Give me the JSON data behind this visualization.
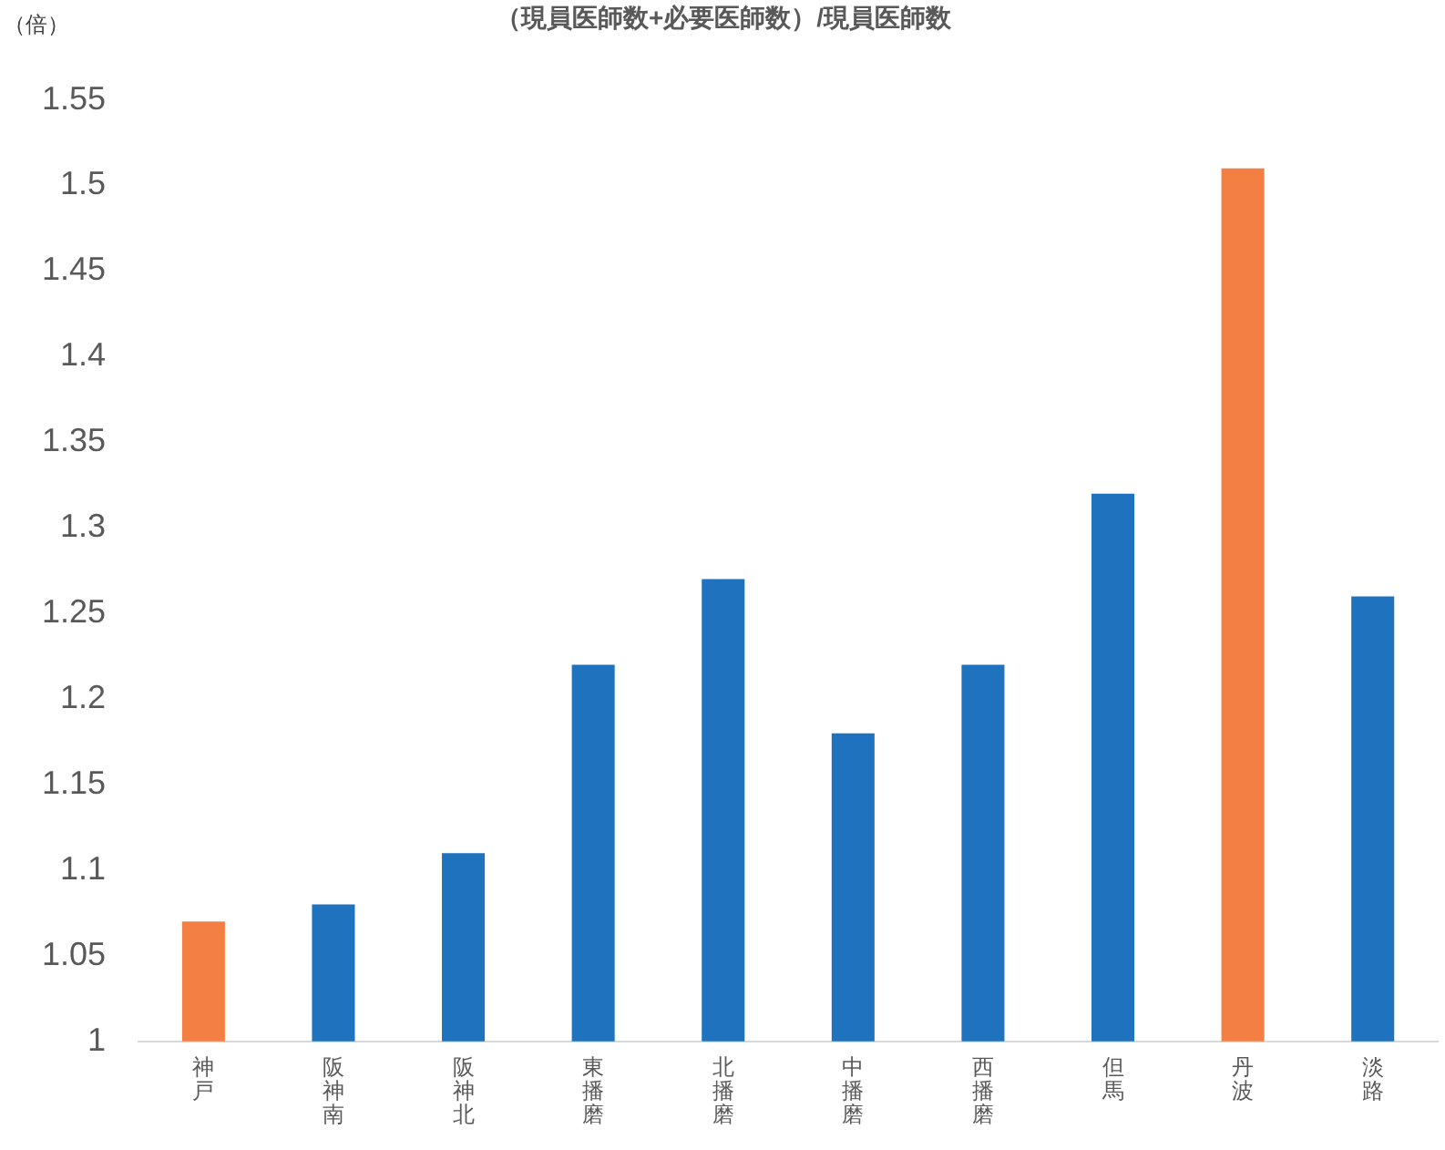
{
  "chart_data": {
    "type": "bar",
    "title": "（現員医師数+必要医師数）/現員医師数",
    "ylabel": "（倍）",
    "categories": [
      "神戸",
      "阪神南",
      "阪神北",
      "東播磨",
      "北播磨",
      "中播磨",
      "西播磨",
      "但馬",
      "丹波",
      "淡路"
    ],
    "values": [
      1.07,
      1.08,
      1.11,
      1.22,
      1.27,
      1.18,
      1.22,
      1.32,
      1.51,
      1.26
    ],
    "colors": [
      "#f47f43",
      "#1f73be",
      "#1f73be",
      "#1f73be",
      "#1f73be",
      "#1f73be",
      "#1f73be",
      "#1f73be",
      "#f47f43",
      "#1f73be"
    ],
    "ylim": [
      1,
      1.55
    ],
    "yticks": [
      1,
      1.05,
      1.1,
      1.15,
      1.2,
      1.25,
      1.3,
      1.35,
      1.4,
      1.45,
      1.5,
      1.55
    ],
    "grid": false,
    "legend": false
  }
}
